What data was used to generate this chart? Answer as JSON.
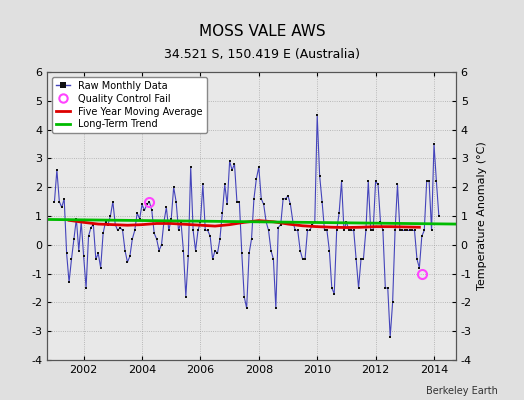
{
  "title": "MOSS VALE AWS",
  "subtitle": "34.521 S, 150.419 E (Australia)",
  "ylabel": "Temperature Anomaly (°C)",
  "credit": "Berkeley Earth",
  "ylim": [
    -4,
    6
  ],
  "xlim_start": 2000.75,
  "xlim_end": 2014.75,
  "xticks": [
    2002,
    2004,
    2006,
    2008,
    2010,
    2012,
    2014
  ],
  "yticks": [
    -4,
    -3,
    -2,
    -1,
    0,
    1,
    2,
    3,
    4,
    5,
    6
  ],
  "background_color": "#e0e0e0",
  "plot_bg_color": "#e8e8e8",
  "line_color": "#4444bb",
  "marker_color": "#111111",
  "moving_avg_color": "#dd0000",
  "trend_color": "#00bb00",
  "qc_fail_color": "#ff44ff",
  "raw_monthly_data": [
    [
      2001.0,
      1.5
    ],
    [
      2001.083,
      2.6
    ],
    [
      2001.167,
      1.5
    ],
    [
      2001.25,
      1.3
    ],
    [
      2001.333,
      1.6
    ],
    [
      2001.417,
      -0.3
    ],
    [
      2001.5,
      -1.3
    ],
    [
      2001.583,
      -0.5
    ],
    [
      2001.667,
      0.2
    ],
    [
      2001.75,
      0.9
    ],
    [
      2001.833,
      -0.2
    ],
    [
      2001.917,
      0.8
    ],
    [
      2002.0,
      -0.4
    ],
    [
      2002.083,
      -1.5
    ],
    [
      2002.167,
      0.3
    ],
    [
      2002.25,
      0.6
    ],
    [
      2002.333,
      0.7
    ],
    [
      2002.417,
      -0.5
    ],
    [
      2002.5,
      -0.3
    ],
    [
      2002.583,
      -0.8
    ],
    [
      2002.667,
      0.4
    ],
    [
      2002.75,
      0.8
    ],
    [
      2002.833,
      0.7
    ],
    [
      2002.917,
      1.0
    ],
    [
      2003.0,
      1.5
    ],
    [
      2003.083,
      0.7
    ],
    [
      2003.167,
      0.5
    ],
    [
      2003.25,
      0.6
    ],
    [
      2003.333,
      0.5
    ],
    [
      2003.417,
      -0.2
    ],
    [
      2003.5,
      -0.6
    ],
    [
      2003.583,
      -0.4
    ],
    [
      2003.667,
      0.2
    ],
    [
      2003.75,
      0.5
    ],
    [
      2003.833,
      1.1
    ],
    [
      2003.917,
      0.9
    ],
    [
      2004.0,
      1.4
    ],
    [
      2004.083,
      1.2
    ],
    [
      2004.167,
      1.4
    ],
    [
      2004.25,
      1.5
    ],
    [
      2004.333,
      1.2
    ],
    [
      2004.417,
      0.4
    ],
    [
      2004.5,
      0.2
    ],
    [
      2004.583,
      -0.2
    ],
    [
      2004.667,
      0.0
    ],
    [
      2004.75,
      0.8
    ],
    [
      2004.833,
      1.3
    ],
    [
      2004.917,
      0.5
    ],
    [
      2005.0,
      0.9
    ],
    [
      2005.083,
      2.0
    ],
    [
      2005.167,
      1.5
    ],
    [
      2005.25,
      0.5
    ],
    [
      2005.333,
      0.8
    ],
    [
      2005.417,
      -0.2
    ],
    [
      2005.5,
      -1.8
    ],
    [
      2005.583,
      -0.4
    ],
    [
      2005.667,
      2.7
    ],
    [
      2005.75,
      0.5
    ],
    [
      2005.833,
      -0.2
    ],
    [
      2005.917,
      0.5
    ],
    [
      2006.0,
      0.8
    ],
    [
      2006.083,
      2.1
    ],
    [
      2006.167,
      0.5
    ],
    [
      2006.25,
      0.5
    ],
    [
      2006.333,
      0.3
    ],
    [
      2006.417,
      -0.5
    ],
    [
      2006.5,
      -0.2
    ],
    [
      2006.583,
      -0.3
    ],
    [
      2006.667,
      0.2
    ],
    [
      2006.75,
      1.1
    ],
    [
      2006.833,
      2.1
    ],
    [
      2006.917,
      1.4
    ],
    [
      2007.0,
      2.9
    ],
    [
      2007.083,
      2.6
    ],
    [
      2007.167,
      2.8
    ],
    [
      2007.25,
      1.5
    ],
    [
      2007.333,
      1.5
    ],
    [
      2007.417,
      -0.3
    ],
    [
      2007.5,
      -1.8
    ],
    [
      2007.583,
      -2.2
    ],
    [
      2007.667,
      -0.3
    ],
    [
      2007.75,
      0.2
    ],
    [
      2007.833,
      1.6
    ],
    [
      2007.917,
      2.3
    ],
    [
      2008.0,
      2.7
    ],
    [
      2008.083,
      1.6
    ],
    [
      2008.167,
      1.4
    ],
    [
      2008.25,
      0.8
    ],
    [
      2008.333,
      0.5
    ],
    [
      2008.417,
      -0.2
    ],
    [
      2008.5,
      -0.5
    ],
    [
      2008.583,
      -2.2
    ],
    [
      2008.667,
      0.6
    ],
    [
      2008.75,
      0.7
    ],
    [
      2008.833,
      1.6
    ],
    [
      2008.917,
      1.6
    ],
    [
      2009.0,
      1.7
    ],
    [
      2009.083,
      1.4
    ],
    [
      2009.167,
      0.8
    ],
    [
      2009.25,
      0.5
    ],
    [
      2009.333,
      0.5
    ],
    [
      2009.417,
      -0.2
    ],
    [
      2009.5,
      -0.5
    ],
    [
      2009.583,
      -0.5
    ],
    [
      2009.667,
      0.5
    ],
    [
      2009.75,
      0.5
    ],
    [
      2009.833,
      0.7
    ],
    [
      2009.917,
      0.8
    ],
    [
      2010.0,
      4.5
    ],
    [
      2010.083,
      2.4
    ],
    [
      2010.167,
      1.5
    ],
    [
      2010.25,
      0.5
    ],
    [
      2010.333,
      0.5
    ],
    [
      2010.417,
      -0.2
    ],
    [
      2010.5,
      -1.5
    ],
    [
      2010.583,
      -1.7
    ],
    [
      2010.667,
      0.5
    ],
    [
      2010.75,
      1.1
    ],
    [
      2010.833,
      2.2
    ],
    [
      2010.917,
      0.5
    ],
    [
      2011.0,
      0.8
    ],
    [
      2011.083,
      0.5
    ],
    [
      2011.167,
      0.5
    ],
    [
      2011.25,
      0.5
    ],
    [
      2011.333,
      -0.5
    ],
    [
      2011.417,
      -1.5
    ],
    [
      2011.5,
      -0.5
    ],
    [
      2011.583,
      -0.5
    ],
    [
      2011.667,
      0.5
    ],
    [
      2011.75,
      2.2
    ],
    [
      2011.833,
      0.5
    ],
    [
      2011.917,
      0.5
    ],
    [
      2012.0,
      2.2
    ],
    [
      2012.083,
      2.1
    ],
    [
      2012.167,
      0.8
    ],
    [
      2012.25,
      0.5
    ],
    [
      2012.333,
      -1.5
    ],
    [
      2012.417,
      -1.5
    ],
    [
      2012.5,
      -3.2
    ],
    [
      2012.583,
      -2.0
    ],
    [
      2012.667,
      0.5
    ],
    [
      2012.75,
      2.1
    ],
    [
      2012.833,
      0.5
    ],
    [
      2012.917,
      0.5
    ],
    [
      2013.0,
      0.5
    ],
    [
      2013.083,
      0.5
    ],
    [
      2013.167,
      0.5
    ],
    [
      2013.25,
      0.5
    ],
    [
      2013.333,
      0.5
    ],
    [
      2013.417,
      -0.5
    ],
    [
      2013.5,
      -0.8
    ],
    [
      2013.583,
      0.3
    ],
    [
      2013.667,
      0.5
    ],
    [
      2013.75,
      2.2
    ],
    [
      2013.833,
      2.2
    ],
    [
      2013.917,
      0.5
    ],
    [
      2014.0,
      3.5
    ],
    [
      2014.083,
      2.2
    ],
    [
      2014.167,
      1.0
    ]
  ],
  "qc_fail_points": [
    [
      2004.25,
      1.5
    ],
    [
      2013.583,
      -1.0
    ]
  ],
  "moving_avg_data": [
    [
      2001.5,
      0.85
    ],
    [
      2002.0,
      0.78
    ],
    [
      2002.5,
      0.72
    ],
    [
      2003.0,
      0.7
    ],
    [
      2003.5,
      0.68
    ],
    [
      2004.0,
      0.7
    ],
    [
      2004.5,
      0.74
    ],
    [
      2005.0,
      0.74
    ],
    [
      2005.5,
      0.71
    ],
    [
      2006.0,
      0.68
    ],
    [
      2006.5,
      0.65
    ],
    [
      2007.0,
      0.7
    ],
    [
      2007.5,
      0.78
    ],
    [
      2008.0,
      0.84
    ],
    [
      2008.5,
      0.8
    ],
    [
      2009.0,
      0.72
    ],
    [
      2009.5,
      0.66
    ],
    [
      2010.0,
      0.63
    ],
    [
      2010.5,
      0.61
    ],
    [
      2011.0,
      0.6
    ],
    [
      2011.5,
      0.61
    ],
    [
      2012.0,
      0.63
    ],
    [
      2012.5,
      0.63
    ],
    [
      2013.0,
      0.62
    ],
    [
      2013.5,
      0.61
    ]
  ],
  "trend_x": [
    2000.75,
    2014.75
  ],
  "trend_y": [
    0.88,
    0.72
  ]
}
